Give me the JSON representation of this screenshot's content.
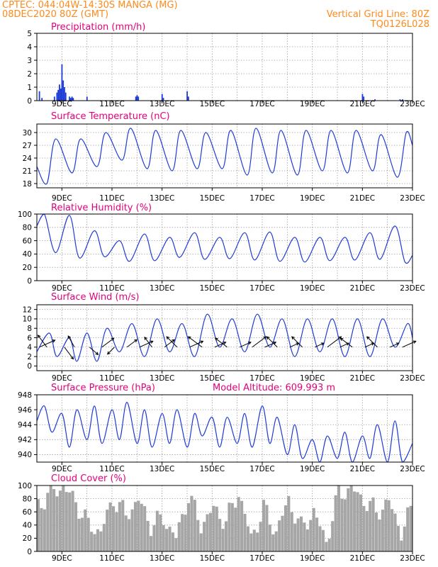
{
  "header": {
    "location": "CPTEC:   044:04W-14:30S   MANGA (MG)",
    "run": "08DEC2020 80Z (GMT)",
    "grid_line": "Vertical Grid Line: 80Z",
    "grid_point": "TQ0126L028"
  },
  "colors": {
    "header_text": "#ff8a1c",
    "panel_title": "#e4007c",
    "series": "#1f3bd6",
    "cloud_bars": "#a6a6a6",
    "wind_arrows": "#000000"
  },
  "chart_data": [
    {
      "type": "bar",
      "title": "Precipitation (mm/h)",
      "ylim": [
        0,
        5
      ],
      "yticks": [
        "0",
        "1",
        "2",
        "3",
        "4",
        "5"
      ],
      "xticks": [
        "9DEC",
        "11DEC",
        "13DEC",
        "15DEC",
        "17DEC",
        "19DEC",
        "21DEC",
        "23DEC"
      ],
      "xlim_days": [
        8.0,
        23.0
      ],
      "grid": true,
      "x_days": [
        8.1,
        8.2,
        8.7,
        8.8,
        8.85,
        8.9,
        8.95,
        9.0,
        9.05,
        9.1,
        9.15,
        9.3,
        9.35,
        9.4,
        9.45,
        10.0,
        11.95,
        12.0,
        12.05,
        13.0,
        13.05,
        14.0,
        14.05,
        21.0,
        21.05,
        21.5,
        22.5,
        22.6
      ],
      "values": [
        0.7,
        0.2,
        0.3,
        0.6,
        0.8,
        1.2,
        0.9,
        2.7,
        1.5,
        1.0,
        0.6,
        0.3,
        0.2,
        0.3,
        0.2,
        0.3,
        0.3,
        0.4,
        0.3,
        0.5,
        0.2,
        0.7,
        0.3,
        0.5,
        0.3,
        0.1,
        0.1,
        0.1
      ]
    },
    {
      "type": "line",
      "title": "Surface Temperature (nC)",
      "ylim": [
        17,
        32
      ],
      "yticks": [
        "18",
        "21",
        "24",
        "27",
        "30"
      ],
      "xticks": [
        "9DEC",
        "11DEC",
        "13DEC",
        "15DEC",
        "17DEC",
        "19DEC",
        "21DEC",
        "23DEC"
      ],
      "xlim_days": [
        8.0,
        23.0
      ],
      "grid": true,
      "x_days": [
        8.0,
        8.4,
        8.75,
        9.4,
        9.75,
        10.4,
        10.75,
        11.4,
        11.75,
        12.4,
        12.75,
        13.4,
        13.75,
        14.4,
        14.75,
        15.4,
        15.75,
        16.4,
        16.75,
        17.4,
        17.75,
        18.4,
        18.75,
        19.4,
        19.75,
        20.4,
        20.75,
        21.4,
        21.75,
        22.4,
        22.75,
        23.0
      ],
      "values": [
        22,
        18,
        28.5,
        20.5,
        28.5,
        22.0,
        30.0,
        23.5,
        31.0,
        21.5,
        30.5,
        21.0,
        30.5,
        21.5,
        30.0,
        21.5,
        30.5,
        20.0,
        31.0,
        20.5,
        30.5,
        20.0,
        30.5,
        21.0,
        30.5,
        20.5,
        30.5,
        21.0,
        29.5,
        19.5,
        30.0,
        27.0
      ]
    },
    {
      "type": "line",
      "title": "Relative Humidity (%)",
      "ylim": [
        0,
        100
      ],
      "yticks": [
        "0",
        "20",
        "40",
        "60",
        "80",
        "100"
      ],
      "xticks": [
        "9DEC",
        "11DEC",
        "13DEC",
        "15DEC",
        "17DEC",
        "19DEC",
        "21DEC",
        "23DEC"
      ],
      "xlim_days": [
        8.0,
        23.0
      ],
      "grid": true,
      "x_days": [
        8.0,
        8.3,
        8.75,
        9.3,
        9.7,
        10.3,
        10.7,
        11.3,
        11.7,
        12.3,
        12.7,
        13.3,
        13.7,
        14.3,
        14.7,
        15.3,
        15.7,
        16.3,
        16.7,
        17.3,
        17.7,
        18.3,
        18.7,
        19.3,
        19.7,
        20.3,
        20.7,
        21.3,
        21.7,
        22.3,
        22.7,
        23.0
      ],
      "values": [
        82,
        100,
        42,
        98,
        34,
        75,
        36,
        60,
        29,
        70,
        30,
        65,
        35,
        72,
        32,
        65,
        33,
        72,
        31,
        73,
        29,
        65,
        28,
        65,
        30,
        65,
        31,
        72,
        32,
        82,
        28,
        38
      ]
    },
    {
      "type": "line",
      "title": "Surface Wind (m/s)",
      "ylim": [
        -1,
        13
      ],
      "yticks": [
        "0",
        "2",
        "4",
        "6",
        "8",
        "10",
        "12"
      ],
      "xticks": [
        "9DEC",
        "11DEC",
        "13DEC",
        "15DEC",
        "17DEC",
        "19DEC",
        "21DEC",
        "23DEC"
      ],
      "xlim_days": [
        8.0,
        23.0
      ],
      "grid": true,
      "x_days": [
        8.0,
        8.5,
        8.8,
        9.3,
        9.6,
        10.0,
        10.4,
        10.8,
        11.3,
        11.8,
        12.3,
        12.8,
        13.3,
        13.8,
        14.3,
        14.8,
        15.3,
        15.8,
        16.3,
        16.8,
        17.3,
        17.8,
        18.3,
        18.8,
        19.3,
        19.8,
        20.3,
        20.8,
        21.3,
        21.8,
        22.3,
        22.8,
        23.0
      ],
      "values": [
        3,
        7,
        2,
        6,
        1,
        7,
        1,
        8,
        3,
        9,
        2,
        10,
        3,
        9,
        2,
        11,
        4,
        10,
        3,
        11,
        4,
        10,
        2,
        10,
        3,
        10,
        2,
        10,
        2,
        10,
        4,
        9,
        6
      ],
      "wind_arrows": {
        "x_days": [
          8.1,
          8.4,
          9.1,
          9.5,
          10.1,
          10.6,
          11.1,
          11.6,
          12.1,
          12.6,
          13.1,
          13.6,
          14.1,
          14.6,
          15.1,
          15.6,
          16.1,
          16.6,
          17.1,
          17.6,
          18.1,
          18.6,
          19.1,
          19.6,
          20.1,
          20.6,
          21.1,
          21.6,
          22.1,
          22.6
        ],
        "speed": [
          3.5,
          3,
          3,
          2.5,
          2.5,
          3,
          2,
          2.5,
          3,
          2.5,
          2.5,
          3,
          3,
          3.5,
          2.5,
          3,
          2.5,
          3.5,
          2.5,
          3,
          2,
          3,
          2,
          3.5,
          2,
          3,
          2,
          3,
          2,
          3
        ],
        "dx": [
          0.9,
          -0.6,
          0.6,
          -0.5,
          0.7,
          0.8,
          -0.7,
          0.8,
          0.9,
          -0.6,
          0.8,
          -0.7,
          0.9,
          -0.8,
          0.9,
          -0.8,
          0.9,
          0.8,
          0.9,
          -0.7,
          0.9,
          -0.7,
          0.9,
          0.8,
          0.9,
          -0.8,
          0.9,
          -0.7,
          0.9,
          0.9
        ],
        "dy": [
          0.4,
          0.8,
          -0.8,
          0.9,
          -0.6,
          0.6,
          -0.7,
          0.6,
          0.4,
          0.8,
          0.6,
          0.7,
          0.4,
          0.6,
          0.4,
          0.6,
          0.4,
          0.6,
          0.4,
          0.7,
          0.4,
          0.7,
          0.4,
          0.6,
          0.4,
          0.6,
          0.4,
          0.7,
          0.4,
          0.4
        ]
      }
    },
    {
      "type": "line",
      "title": "Surface Pressure (hPa)",
      "subtitle": "Model Altitude: 609.993 m",
      "ylim": [
        939,
        948
      ],
      "yticks": [
        "940",
        "942",
        "944",
        "946",
        "948"
      ],
      "xticks": [
        "9DEC",
        "11DEC",
        "13DEC",
        "15DEC",
        "17DEC",
        "19DEC",
        "21DEC",
        "23DEC"
      ],
      "xlim_days": [
        8.0,
        23.0
      ],
      "grid": true,
      "x_days": [
        8.0,
        8.3,
        8.6,
        9.0,
        9.3,
        9.6,
        10.0,
        10.3,
        10.6,
        11.0,
        11.3,
        11.6,
        12.0,
        12.3,
        12.6,
        13.0,
        13.3,
        13.6,
        14.0,
        14.3,
        14.6,
        15.0,
        15.3,
        15.6,
        16.0,
        16.3,
        16.6,
        17.0,
        17.3,
        17.6,
        18.0,
        18.3,
        18.6,
        19.0,
        19.3,
        19.6,
        20.0,
        20.3,
        20.6,
        21.0,
        21.3,
        21.6,
        22.0,
        22.3,
        22.6,
        23.0
      ],
      "values": [
        944.5,
        946.5,
        943.0,
        945.5,
        941.0,
        946.0,
        942.0,
        946.5,
        941.5,
        946.0,
        942.0,
        947.0,
        941.5,
        946.0,
        941.0,
        945.5,
        941.5,
        946.0,
        941.0,
        945.5,
        942.5,
        945.0,
        941.0,
        945.0,
        941.5,
        945.5,
        941.0,
        946.5,
        941.5,
        945.0,
        940.0,
        944.0,
        939.5,
        942.0,
        939.0,
        942.5,
        939.5,
        943.0,
        939.0,
        942.5,
        939.5,
        944.0,
        939.0,
        944.5,
        939.0,
        941.5
      ]
    },
    {
      "type": "bar",
      "title": "Cloud Cover (%)",
      "ylim": [
        0,
        100
      ],
      "yticks": [
        "0",
        "20",
        "40",
        "60",
        "80",
        "100"
      ],
      "xticks": [
        "9DEC",
        "11DEC",
        "13DEC",
        "15DEC",
        "17DEC",
        "19DEC",
        "21DEC",
        "23DEC"
      ],
      "xlim_days": [
        8.0,
        23.0
      ],
      "grid": true,
      "x_days": [
        8.0,
        8.5,
        9.0,
        9.5,
        10.0,
        10.5,
        11.0,
        11.5,
        12.0,
        12.5,
        13.0,
        13.5,
        14.0,
        14.5,
        15.0,
        15.5,
        16.0,
        16.5,
        17.0,
        17.5,
        18.0,
        18.5,
        19.0,
        19.5,
        20.0,
        20.5,
        21.0,
        21.5,
        22.0,
        22.5,
        23.0
      ],
      "values": [
        70,
        90,
        98,
        75,
        40,
        30,
        80,
        55,
        78,
        40,
        50,
        20,
        85,
        40,
        65,
        45,
        90,
        20,
        65,
        30,
        78,
        35,
        60,
        15,
        88,
        95,
        78,
        60,
        75,
        30,
        70
      ]
    }
  ]
}
